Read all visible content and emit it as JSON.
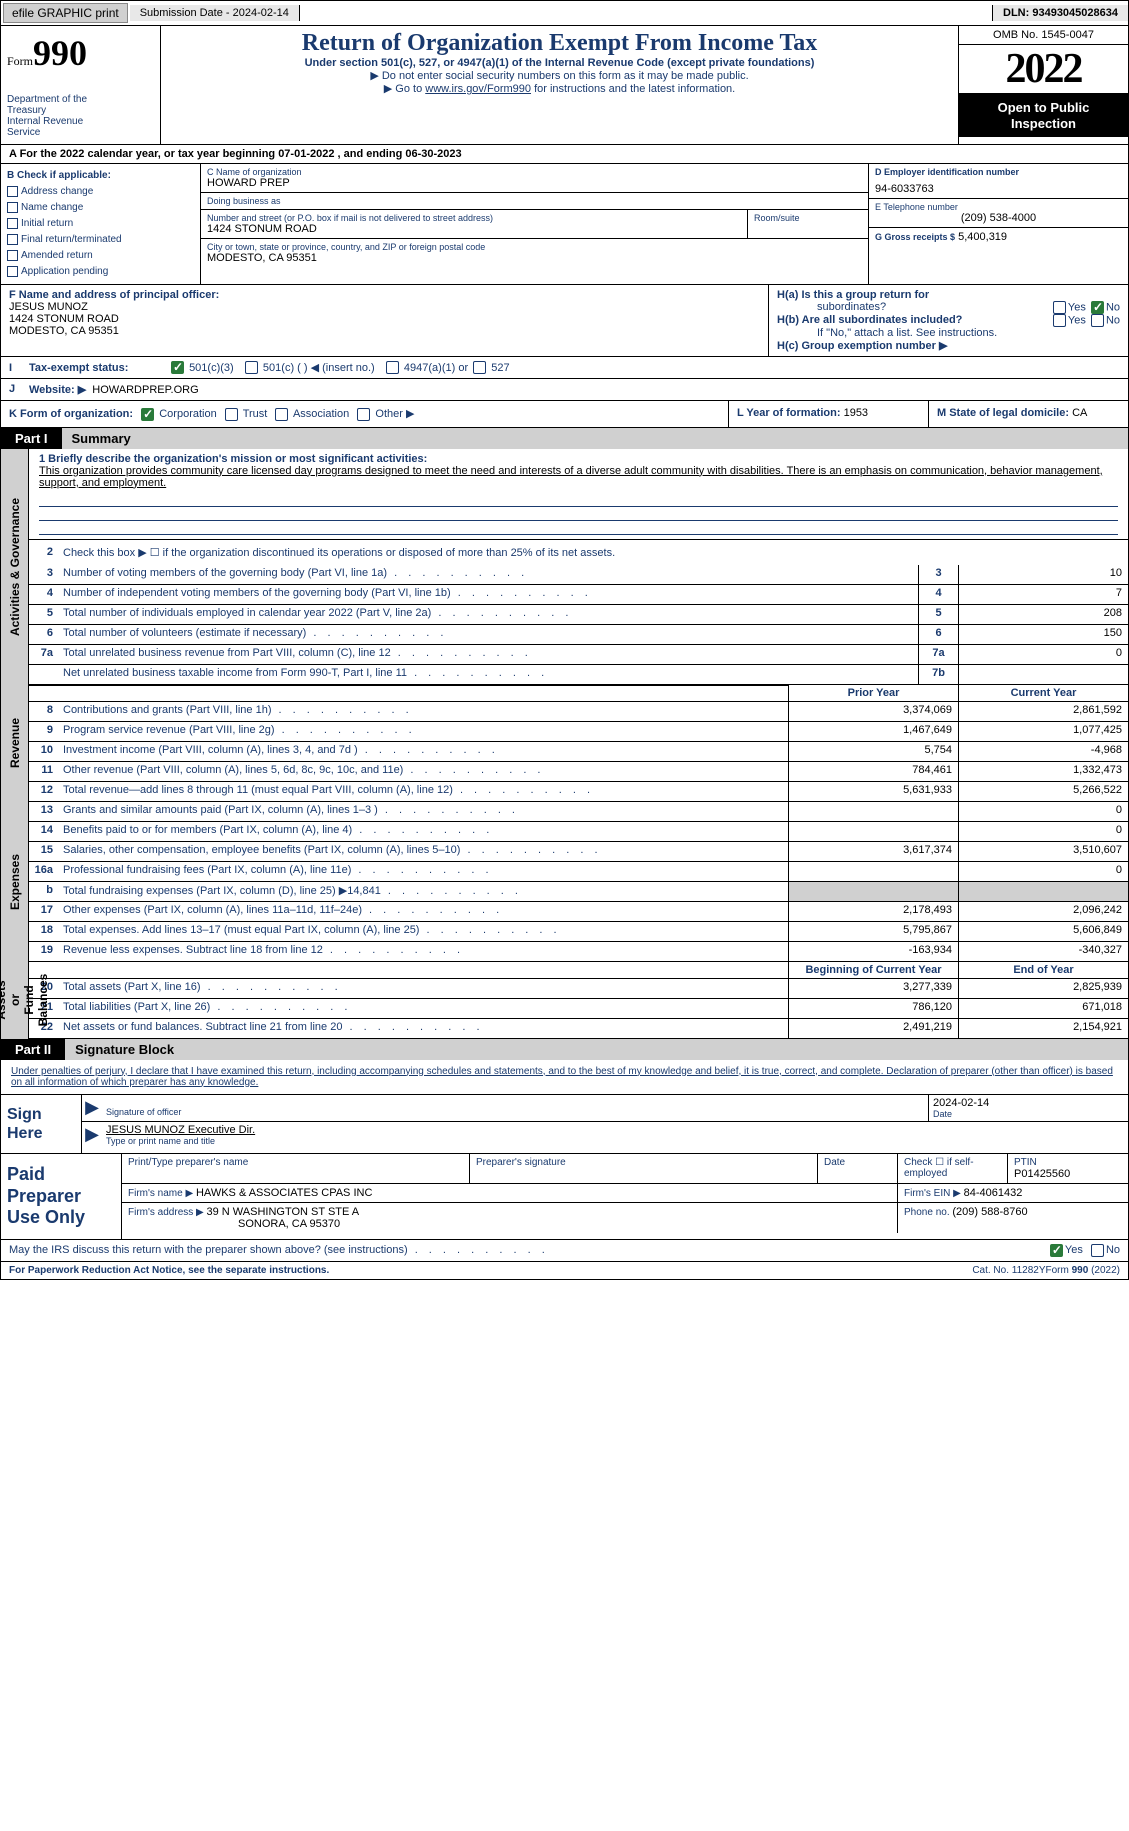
{
  "meta": {
    "dln": "DLN: 93493045028634",
    "submission": "Submission Date - 2024-02-14",
    "efile": "efile GRAPHIC print"
  },
  "header": {
    "form_prefix": "Form",
    "form_num": "990",
    "dept": "Department of the\nTreasury\nInternal Revenue\nService",
    "title": "Return of Organization Exempt From Income Tax",
    "subtitle": "Under section 501(c), 527, or 4947(a)(1) of the Internal Revenue Code (except private foundations)",
    "noSSN": "▶ Do not enter social security numbers on this form as it may be made public.",
    "goTo": "▶ Go to ",
    "goToLink": "www.irs.gov/Form990",
    "goToTail": " for instructions and the latest information.",
    "omb": "OMB No. 1545-0047",
    "year": "2022",
    "open": "Open to Public\nInspection"
  },
  "calendar": "A For the 2022 calendar year, or tax year beginning 07-01-2022    , and ending 06-30-2023",
  "B": {
    "label": "B Check if applicable:",
    "opts": [
      "Address change",
      "Name change",
      "Initial return",
      "Final return/terminated",
      "Amended return",
      "Application pending"
    ]
  },
  "C": {
    "name_lbl": "C Name of organization",
    "name": "HOWARD PREP",
    "dba_lbl": "Doing business as",
    "dba": "",
    "street_lbl": "Number and street (or P.O. box if mail is not delivered to street address)",
    "street": "1424 STONUM ROAD",
    "room_lbl": "Room/suite",
    "room": "",
    "city_lbl": "City or town, state or province, country, and ZIP or foreign postal code",
    "city": "MODESTO, CA  95351"
  },
  "D": {
    "lbl": "D Employer identification number",
    "val": "94-6033763"
  },
  "E": {
    "lbl": "E Telephone number",
    "val": "(209) 538-4000"
  },
  "G": {
    "lbl": "G Gross receipts $",
    "val": "5,400,319"
  },
  "F": {
    "lbl": "F Name and address of principal officer:",
    "name": "JESUS MUNOZ",
    "addr1": "1424 STONUM ROAD",
    "addr2": "MODESTO, CA  95351"
  },
  "H": {
    "a": "H(a)  Is this a group return for",
    "a2": "subordinates?",
    "b": "H(b)  Are all subordinates included?",
    "bnote": "If \"No,\" attach a list. See instructions.",
    "c": "H(c)  Group exemption number ▶"
  },
  "I": {
    "lbl": "Tax-exempt status:",
    "o1": "501(c)(3)",
    "o2": "501(c) (  ) ◀ (insert no.)",
    "o3": "4947(a)(1) or",
    "o4": "527"
  },
  "J": {
    "lbl": "Website: ▶",
    "val": "HOWARDPREP.ORG"
  },
  "K": {
    "lbl": "K Form of organization:",
    "corp": "Corporation",
    "trust": "Trust",
    "assoc": "Association",
    "other": "Other ▶"
  },
  "L": {
    "lbl": "L Year of formation:",
    "val": "1953"
  },
  "M": {
    "lbl": "M State of legal domicile:",
    "val": "CA"
  },
  "partI": {
    "num": "Part I",
    "title": "Summary"
  },
  "summary": {
    "line1_lbl": "1  Briefly describe the organization's mission or most significant activities:",
    "mission": "This organization provides community care licensed day programs designed to meet the need and interests of a diverse adult community with disabilities. There is an emphasis on communication, behavior management, support, and employment.",
    "line2": "Check this box ▶ ☐  if the organization discontinued its operations or disposed of more than 25% of its net assets.",
    "lines_onecol": [
      {
        "n": "3",
        "d": "Number of voting members of the governing body (Part VI, line 1a)",
        "box": "3",
        "v": "10"
      },
      {
        "n": "4",
        "d": "Number of independent voting members of the governing body (Part VI, line 1b)",
        "box": "4",
        "v": "7"
      },
      {
        "n": "5",
        "d": "Total number of individuals employed in calendar year 2022 (Part V, line 2a)",
        "box": "5",
        "v": "208"
      },
      {
        "n": "6",
        "d": "Total number of volunteers (estimate if necessary)",
        "box": "6",
        "v": "150"
      },
      {
        "n": "7a",
        "d": "Total unrelated business revenue from Part VIII, column (C), line 12",
        "box": "7a",
        "v": "0"
      },
      {
        "n": "",
        "d": "Net unrelated business taxable income from Form 990-T, Part I, line 11",
        "box": "7b",
        "v": ""
      }
    ],
    "hdr_prior": "Prior Year",
    "hdr_curr": "Current Year",
    "lines_twocol_rev": [
      {
        "n": "8",
        "d": "Contributions and grants (Part VIII, line 1h)",
        "p": "3,374,069",
        "c": "2,861,592"
      },
      {
        "n": "9",
        "d": "Program service revenue (Part VIII, line 2g)",
        "p": "1,467,649",
        "c": "1,077,425"
      },
      {
        "n": "10",
        "d": "Investment income (Part VIII, column (A), lines 3, 4, and 7d )",
        "p": "5,754",
        "c": "-4,968"
      },
      {
        "n": "11",
        "d": "Other revenue (Part VIII, column (A), lines 5, 6d, 8c, 9c, 10c, and 11e)",
        "p": "784,461",
        "c": "1,332,473"
      },
      {
        "n": "12",
        "d": "Total revenue—add lines 8 through 11 (must equal Part VIII, column (A), line 12)",
        "p": "5,631,933",
        "c": "5,266,522"
      }
    ],
    "lines_twocol_exp": [
      {
        "n": "13",
        "d": "Grants and similar amounts paid (Part IX, column (A), lines 1–3 )",
        "p": "",
        "c": "0"
      },
      {
        "n": "14",
        "d": "Benefits paid to or for members (Part IX, column (A), line 4)",
        "p": "",
        "c": "0"
      },
      {
        "n": "15",
        "d": "Salaries, other compensation, employee benefits (Part IX, column (A), lines 5–10)",
        "p": "3,617,374",
        "c": "3,510,607"
      },
      {
        "n": "16a",
        "d": "Professional fundraising fees (Part IX, column (A), line 11e)",
        "p": "",
        "c": "0"
      },
      {
        "n": "b",
        "d": "Total fundraising expenses (Part IX, column (D), line 25) ▶14,841",
        "p": "SHADE",
        "c": "SHADE"
      },
      {
        "n": "17",
        "d": "Other expenses (Part IX, column (A), lines 11a–11d, 11f–24e)",
        "p": "2,178,493",
        "c": "2,096,242"
      },
      {
        "n": "18",
        "d": "Total expenses. Add lines 13–17 (must equal Part IX, column (A), line 25)",
        "p": "5,795,867",
        "c": "5,606,849"
      },
      {
        "n": "19",
        "d": "Revenue less expenses. Subtract line 18 from line 12",
        "p": "-163,934",
        "c": "-340,327"
      }
    ],
    "hdr_beg": "Beginning of Current Year",
    "hdr_end": "End of Year",
    "lines_twocol_net": [
      {
        "n": "20",
        "d": "Total assets (Part X, line 16)",
        "p": "3,277,339",
        "c": "2,825,939"
      },
      {
        "n": "21",
        "d": "Total liabilities (Part X, line 26)",
        "p": "786,120",
        "c": "671,018"
      },
      {
        "n": "22",
        "d": "Net assets or fund balances. Subtract line 21 from line 20",
        "p": "2,491,219",
        "c": "2,154,921"
      }
    ],
    "vtabs": {
      "gov": "Activities & Governance",
      "rev": "Revenue",
      "exp": "Expenses",
      "net": "Net Assets or\nFund Balances"
    }
  },
  "partII": {
    "num": "Part II",
    "title": "Signature Block",
    "decl": "Under penalties of perjury, I declare that I have examined this return, including accompanying schedules and statements, and to the best of my knowledge and belief, it is true, correct, and complete. Declaration of preparer (other than officer) is based on all information of which preparer has any knowledge."
  },
  "sign": {
    "here": "Sign\nHere",
    "sigoff": "Signature of officer",
    "date": "Date",
    "dateval": "2024-02-14",
    "name": "JESUS MUNOZ  Executive Dir.",
    "typed": "Type or print name and title"
  },
  "prep": {
    "title": "Paid\nPreparer\nUse Only",
    "h1": "Print/Type preparer's name",
    "h2": "Preparer's signature",
    "h3": "Date",
    "h4": "Check ☐ if self-employed",
    "h5": "PTIN",
    "ptin": "P01425560",
    "firm_lbl": "Firm's name      ▶",
    "firm": "HAWKS & ASSOCIATES CPAS INC",
    "ein_lbl": "Firm's EIN ▶",
    "ein": "84-4061432",
    "addr_lbl": "Firm's address ▶",
    "addr": "39 N WASHINGTON ST STE A",
    "addr2": "SONORA, CA  95370",
    "phone_lbl": "Phone no.",
    "phone": "(209) 588-8760"
  },
  "may": "May the IRS discuss this return with the preparer shown above? (see instructions)",
  "footer": {
    "l": "For Paperwork Reduction Act Notice, see the separate instructions.",
    "m": "Cat. No. 11282Y",
    "r": "Form 990 (2022)"
  }
}
